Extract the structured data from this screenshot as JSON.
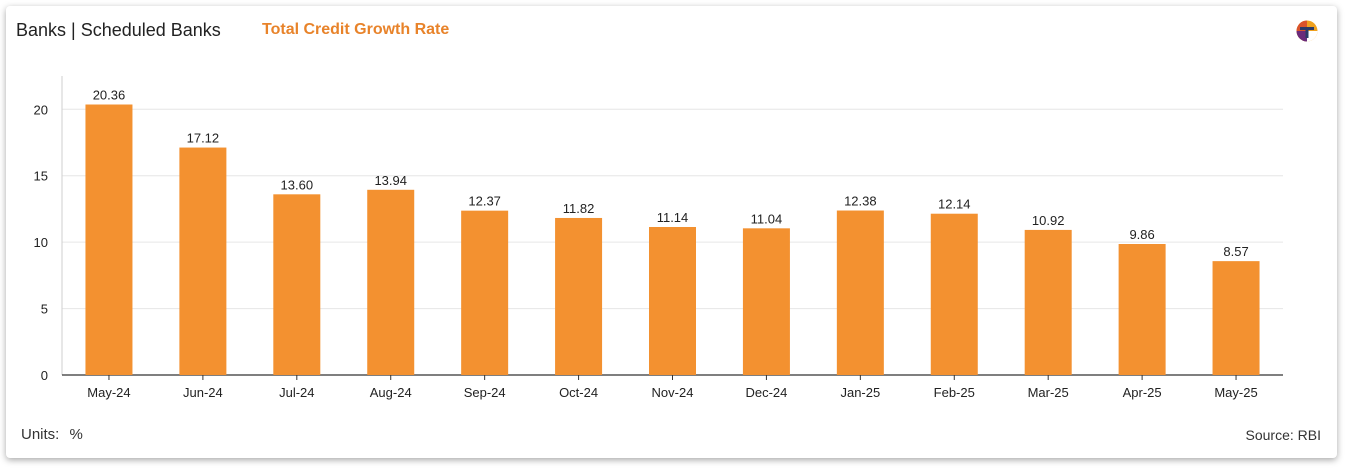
{
  "header": {
    "title": "Banks | Scheduled Banks",
    "subtitle": "Total Credit Growth Rate",
    "logo_icon": "brand-logo-icon"
  },
  "footer": {
    "units_label": "Units:",
    "units_value": "%",
    "source": "Source: RBI"
  },
  "colors": {
    "bar": "#f39130",
    "subtitle": "#e8832a",
    "grid": "#e6e6e6"
  },
  "chart_data": {
    "type": "bar",
    "categories": [
      "May-24",
      "Jun-24",
      "Jul-24",
      "Aug-24",
      "Sep-24",
      "Oct-24",
      "Nov-24",
      "Dec-24",
      "Jan-25",
      "Feb-25",
      "Mar-25",
      "Apr-25",
      "May-25"
    ],
    "values": [
      20.36,
      17.12,
      13.6,
      13.94,
      12.37,
      11.82,
      11.14,
      11.04,
      12.38,
      12.14,
      10.92,
      9.86,
      8.57
    ],
    "value_labels": [
      "20.36",
      "17.12",
      "13.60",
      "13.94",
      "12.37",
      "11.82",
      "11.14",
      "11.04",
      "12.38",
      "12.14",
      "10.92",
      "9.86",
      "8.57"
    ],
    "yticks": [
      0,
      5,
      10,
      15,
      20
    ],
    "ylim": [
      0,
      21
    ],
    "grid": true,
    "legend": "none",
    "title": "Total Credit Growth Rate"
  }
}
